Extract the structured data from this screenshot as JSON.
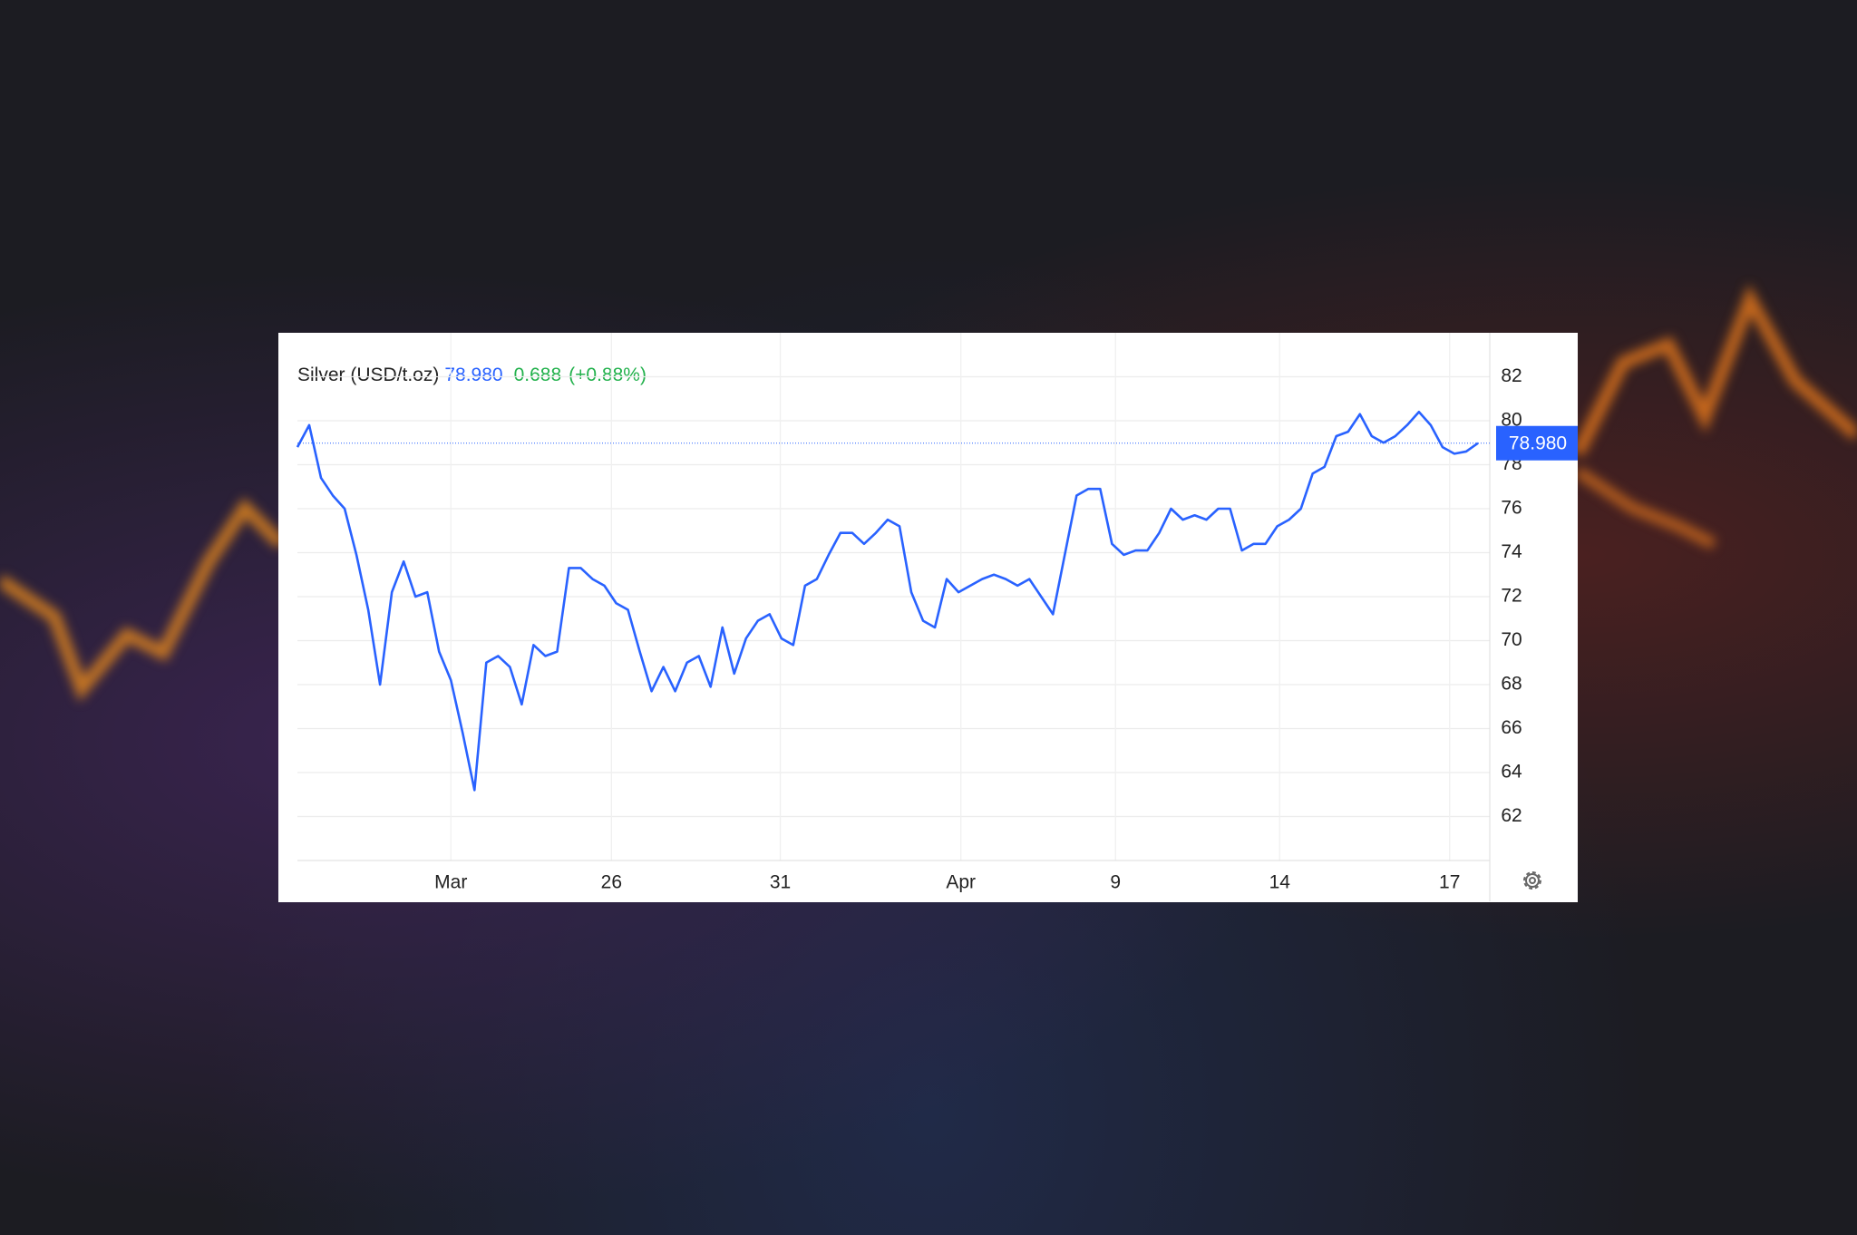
{
  "chart_data": {
    "type": "line",
    "title": "Silver (USD/t.oz)",
    "last_price": 78.98,
    "last_price_label": "78.980",
    "change": "0.688",
    "change_pct": "(+0.88%)",
    "xlim": [
      0,
      101
    ],
    "xticks": [
      {
        "value": 13,
        "label": "Mar"
      },
      {
        "value": 26.6,
        "label": "26"
      },
      {
        "value": 40.9,
        "label": "31"
      },
      {
        "value": 56.2,
        "label": "Apr"
      },
      {
        "value": 69.3,
        "label": "9"
      },
      {
        "value": 83.2,
        "label": "14"
      },
      {
        "value": 97.6,
        "label": "17"
      }
    ],
    "ylim": [
      60,
      84
    ],
    "yticks": [
      62,
      64,
      66,
      68,
      70,
      72,
      74,
      76,
      78,
      80,
      82
    ],
    "grid": true,
    "x": [
      0,
      1,
      2,
      3,
      4,
      5,
      6,
      7,
      8,
      9,
      10,
      11,
      12,
      13,
      14,
      15,
      16,
      17,
      18,
      19,
      20,
      21,
      22,
      23,
      24,
      25,
      26,
      27,
      28,
      29,
      30,
      31,
      32,
      33,
      34,
      35,
      36,
      37,
      38,
      39,
      40,
      41,
      42,
      43,
      44,
      45,
      46,
      47,
      48,
      49,
      50,
      51,
      52,
      53,
      54,
      55,
      56,
      57,
      58,
      59,
      60,
      61,
      62,
      63,
      64,
      65,
      66,
      67,
      68,
      69,
      70,
      71,
      72,
      73,
      74,
      75,
      76,
      77,
      78,
      79,
      80,
      81,
      82,
      83,
      84,
      85,
      86,
      87,
      88,
      89,
      90,
      91,
      92,
      93,
      94,
      95,
      96,
      97,
      98,
      99,
      100
    ],
    "series": [
      {
        "name": "Silver",
        "color": "#2962ff",
        "values": [
          78.8,
          79.8,
          77.4,
          76.6,
          76.0,
          73.9,
          71.4,
          68.0,
          72.2,
          73.6,
          72.0,
          72.2,
          69.5,
          68.2,
          65.8,
          63.2,
          69.0,
          69.3,
          68.8,
          67.1,
          69.8,
          69.3,
          69.5,
          73.3,
          73.3,
          72.8,
          72.5,
          71.7,
          71.4,
          69.5,
          67.7,
          68.8,
          67.7,
          69.0,
          69.3,
          67.9,
          70.6,
          68.5,
          70.1,
          70.9,
          71.2,
          70.1,
          69.8,
          72.5,
          72.8,
          73.9,
          74.9,
          74.9,
          74.4,
          74.9,
          75.5,
          75.2,
          72.2,
          70.9,
          70.6,
          72.8,
          72.2,
          72.5,
          72.8,
          73.0,
          72.8,
          72.5,
          72.8,
          72.0,
          71.2,
          73.9,
          76.6,
          76.9,
          76.9,
          74.4,
          73.9,
          74.1,
          74.1,
          74.9,
          76.0,
          75.5,
          75.7,
          75.5,
          76.0,
          76.0,
          74.1,
          74.4,
          74.4,
          75.2,
          75.5,
          76.0,
          77.6,
          77.9,
          79.3,
          79.5,
          80.3,
          79.3,
          79.0,
          79.3,
          79.8,
          80.4,
          79.8,
          78.8,
          78.5,
          78.6,
          78.98
        ]
      }
    ]
  }
}
